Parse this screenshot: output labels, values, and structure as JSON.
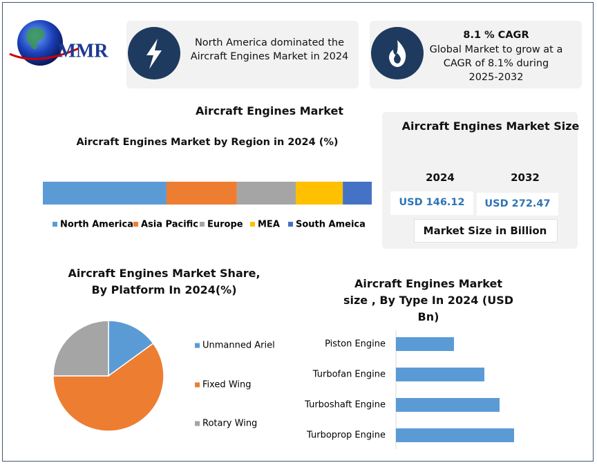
{
  "logo": "MMR",
  "highlights": [
    {
      "text": "North America dominated the Aircraft Engines Market in 2024"
    },
    {
      "title": "8.1 % CAGR",
      "text": "Global Market to grow at a CAGR of 8.1% during 2025-2032"
    }
  ],
  "title": "Aircraft Engines Market",
  "market_size": {
    "title": "Aircraft Engines Market Size",
    "years": [
      "2024",
      "2032"
    ],
    "values": [
      "USD 146.12",
      "USD 272.47"
    ],
    "note": "Market Size in Billion"
  },
  "chart_data": [
    {
      "type": "stacked_bar",
      "title": "Aircraft Engines Market by Region in 2024 (%)",
      "series": [
        {
          "name": "North America",
          "color": "#5b9bd5",
          "values": [
            37.6
          ]
        },
        {
          "name": "Asia Pacific",
          "color": "#ed7d31",
          "values": [
            21.4
          ]
        },
        {
          "name": "Europe",
          "color": "#a5a5a5",
          "values": [
            17.9
          ]
        },
        {
          "name": "MEA",
          "color": "#ffc000",
          "values": [
            14.3
          ]
        },
        {
          "name": "South Ameica",
          "color": "#4472c4",
          "values": [
            8.8
          ]
        }
      ]
    },
    {
      "type": "pie",
      "title": "Aircraft Engines Market Share, By Platform In 2024(%)",
      "categories": [
        "Unmanned Ariel",
        "Fixed Wing",
        "Rotary Wing"
      ],
      "values": [
        15,
        60,
        25
      ],
      "colors": [
        "#5b9bd5",
        "#ed7d31",
        "#a5a5a5"
      ]
    },
    {
      "type": "barh",
      "title": "Aircraft Engines Market size , By Type In 2024 (USD Bn)",
      "categories": [
        "Piston Engine",
        "Turbofan Engine",
        "Turboshaft Engine",
        "Turboprop Engine"
      ],
      "values": [
        8.4,
        12.8,
        15.0,
        17.1
      ],
      "color": "#5b9bd5"
    }
  ]
}
